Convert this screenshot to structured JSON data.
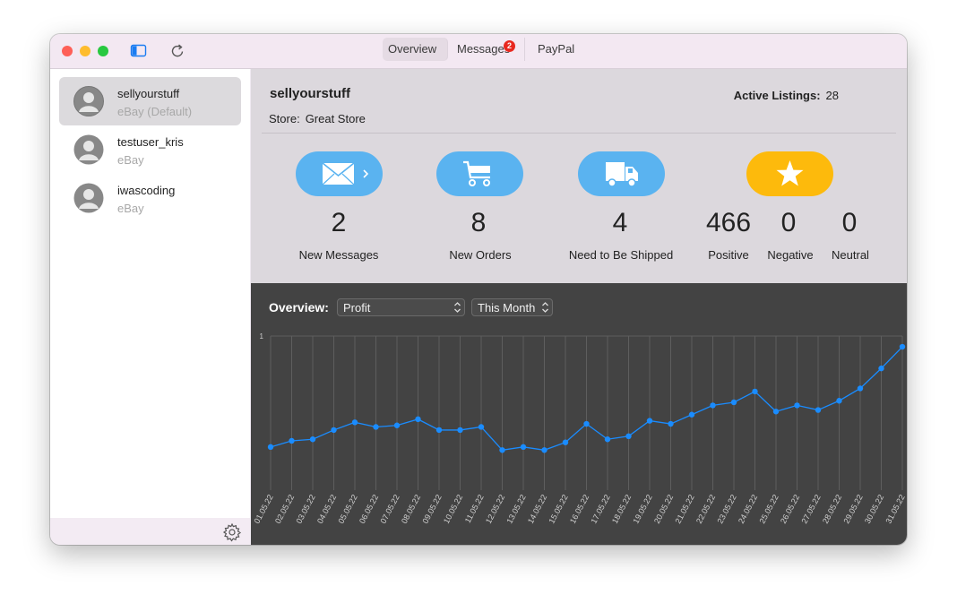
{
  "titlebar": {
    "colors": {
      "close": "#fe5f57",
      "minimize": "#febc2e",
      "zoom": "#28c840"
    },
    "sidebar_toggle_icon": "sidebar-icon",
    "refresh_icon": "refresh-icon",
    "tabs": [
      {
        "label": "Overview",
        "active": true
      },
      {
        "label": "Messages",
        "active": false,
        "badge": "2"
      },
      {
        "label": "PayPal",
        "active": false
      }
    ]
  },
  "sidebar": {
    "accounts": [
      {
        "name": "sellyourstuff",
        "sub": "eBay (Default)",
        "selected": true
      },
      {
        "name": "testuser_kris",
        "sub": "eBay",
        "selected": false
      },
      {
        "name": "iwascoding",
        "sub": "eBay",
        "selected": false
      }
    ],
    "settings_icon": "gear-icon"
  },
  "summary": {
    "account_name": "sellyourstuff",
    "store_label": "Store:",
    "store_value": "Great Store",
    "active_listings_label": "Active Listings:",
    "active_listings_value": "28",
    "stats": [
      {
        "icon": "envelope-icon",
        "value": "2",
        "label": "New Messages"
      },
      {
        "icon": "cart-icon",
        "value": "8",
        "label": "New Orders"
      },
      {
        "icon": "truck-icon",
        "value": "4",
        "label": "Need to Be Shipped"
      }
    ],
    "feedback": {
      "icon": "star-icon",
      "positive_value": "466",
      "positive_label": "Positive",
      "negative_value": "0",
      "negative_label": "Negative",
      "neutral_value": "0",
      "neutral_label": "Neutral"
    },
    "colors": {
      "blue_pill": "#5ab3f0",
      "star_pill": "#fdba0c"
    }
  },
  "overview": {
    "label": "Overview:",
    "metric_select": "Profit",
    "period_select": "This Month"
  },
  "chart_data": {
    "type": "line",
    "title": "",
    "xlabel": "",
    "ylabel": "",
    "ytick_labels": [
      "1"
    ],
    "ylim": [
      0,
      1
    ],
    "grid": true,
    "line_color": "#1a8cff",
    "categories": [
      "01.05.22",
      "02.05.22",
      "03.05.22",
      "04.05.22",
      "05.05.22",
      "06.05.22",
      "07.05.22",
      "08.05.22",
      "09.05.22",
      "10.05.22",
      "11.05.22",
      "12.05.22",
      "13.05.22",
      "14.05.22",
      "15.05.22",
      "16.05.22",
      "17.05.22",
      "18.05.22",
      "19.05.22",
      "20.05.22",
      "21.05.22",
      "22.05.22",
      "23.05.22",
      "24.05.22",
      "25.05.22",
      "26.05.22",
      "27.05.22",
      "28.05.22",
      "29.05.22",
      "30.05.22",
      "31.05.22"
    ],
    "series": [
      {
        "values": [
          0.28,
          0.32,
          0.33,
          0.39,
          0.44,
          0.41,
          0.42,
          0.46,
          0.39,
          0.39,
          0.41,
          0.26,
          0.28,
          0.26,
          0.31,
          0.43,
          0.33,
          0.35,
          0.45,
          0.43,
          0.49,
          0.55,
          0.57,
          0.64,
          0.51,
          0.55,
          0.52,
          0.58,
          0.66,
          0.79,
          0.93
        ]
      }
    ]
  }
}
